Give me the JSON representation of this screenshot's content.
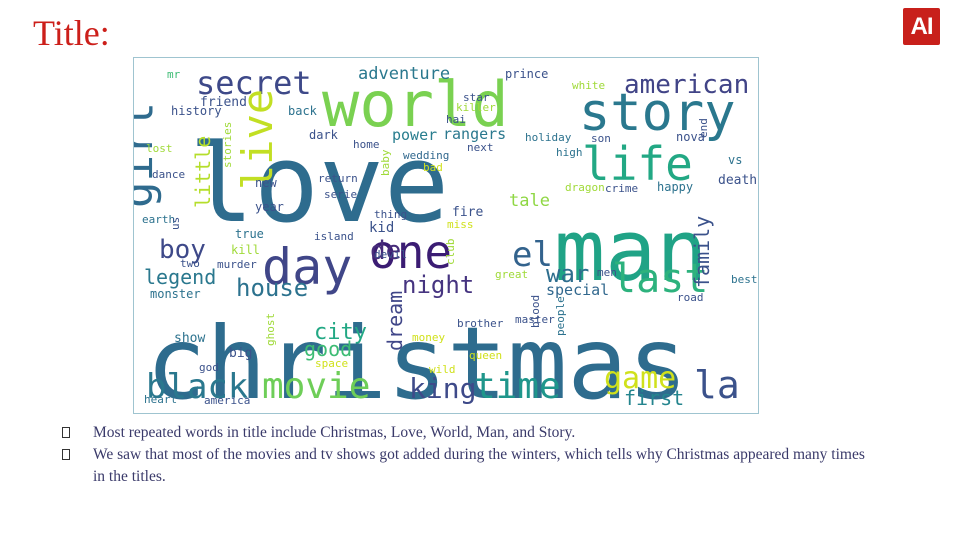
{
  "slide": {
    "title": "Title:",
    "logo_text": "AI",
    "colors": {
      "title": "#cc1f1a",
      "logo_bg": "#c8201b",
      "bullet_text": "#3a3a6a"
    }
  },
  "bullets": [
    "Most repeated words in title include Christmas, Love, World, Man, and Story.",
    "We saw that most of the movies and tv shows got added during the winters, which tells why Christmas appeared many times in the titles."
  ],
  "wordcloud": {
    "words": [
      {
        "text": "christmas",
        "color": "#2e6c8e"
      },
      {
        "text": "love",
        "color": "#2e6c8e"
      },
      {
        "text": "man",
        "color": "#20a386"
      },
      {
        "text": "world",
        "color": "#7ad151"
      },
      {
        "text": "story",
        "color": "#2a788e"
      },
      {
        "text": "life",
        "color": "#22a884"
      },
      {
        "text": "day",
        "color": "#404688"
      },
      {
        "text": "one",
        "color": "#3b1c73"
      },
      {
        "text": "girl",
        "color": "#2f6b8e"
      },
      {
        "text": "secret",
        "color": "#3e4989"
      },
      {
        "text": "live",
        "color": "#c2df23"
      },
      {
        "text": "last",
        "color": "#2db27d"
      },
      {
        "text": "american",
        "color": "#414487"
      },
      {
        "text": "movie",
        "color": "#6ece58"
      },
      {
        "text": "time",
        "color": "#1f968b"
      },
      {
        "text": "black",
        "color": "#2a788e"
      },
      {
        "text": "la",
        "color": "#3b528b"
      },
      {
        "text": "game",
        "color": "#d0e11c"
      },
      {
        "text": "king",
        "color": "#3e4a89"
      },
      {
        "text": "el",
        "color": "#33638d"
      },
      {
        "text": "boy",
        "color": "#3e4989"
      },
      {
        "text": "de",
        "color": "#472c7a"
      },
      {
        "text": "night",
        "color": "#463480"
      },
      {
        "text": "house",
        "color": "#2c728e"
      },
      {
        "text": "war",
        "color": "#2e6e8e"
      },
      {
        "text": "legend",
        "color": "#2a788e"
      },
      {
        "text": "city",
        "color": "#22a884"
      },
      {
        "text": "good",
        "color": "#3dbc74"
      },
      {
        "text": "first",
        "color": "#25858e"
      },
      {
        "text": "little",
        "color": "#b5de2b"
      },
      {
        "text": "family",
        "color": "#3b528b"
      },
      {
        "text": "dream",
        "color": "#404688"
      },
      {
        "text": "adventure",
        "color": "#2a788e"
      },
      {
        "text": "tale",
        "color": "#8fd744"
      },
      {
        "text": "special",
        "color": "#31688e"
      },
      {
        "text": "power",
        "color": "#287d8e"
      },
      {
        "text": "rangers",
        "color": "#2a788e"
      },
      {
        "text": "friend",
        "color": "#3b528b"
      },
      {
        "text": "back",
        "color": "#2c728e"
      },
      {
        "text": "history",
        "color": "#3b528b"
      },
      {
        "text": "prince",
        "color": "#3b528b"
      },
      {
        "text": "white",
        "color": "#a0da39"
      },
      {
        "text": "mr",
        "color": "#3dbc74"
      },
      {
        "text": "dark",
        "color": "#3b528b"
      },
      {
        "text": "home",
        "color": "#3b528b"
      },
      {
        "text": "wedding",
        "color": "#31688e"
      },
      {
        "text": "next",
        "color": "#3b528b"
      },
      {
        "text": "holiday",
        "color": "#2c728e"
      },
      {
        "text": "son",
        "color": "#3b528b"
      },
      {
        "text": "nova",
        "color": "#3b528b"
      },
      {
        "text": "high",
        "color": "#2c728e"
      },
      {
        "text": "vs",
        "color": "#2c728e"
      },
      {
        "text": "death",
        "color": "#3b528b"
      },
      {
        "text": "happy",
        "color": "#2c728e"
      },
      {
        "text": "crime",
        "color": "#3b528b"
      },
      {
        "text": "dragon",
        "color": "#a0da39"
      },
      {
        "text": "return",
        "color": "#3b528b"
      },
      {
        "text": "serie",
        "color": "#3b528b"
      },
      {
        "text": "baby",
        "color": "#a0da39"
      },
      {
        "text": "new",
        "color": "#3b528b"
      },
      {
        "text": "year",
        "color": "#3b528b"
      },
      {
        "text": "stories",
        "color": "#a0da39"
      },
      {
        "text": "thing",
        "color": "#3b528b"
      },
      {
        "text": "kid",
        "color": "#3b528b"
      },
      {
        "text": "fire",
        "color": "#3b528b"
      },
      {
        "text": "miss",
        "color": "#d0e11c"
      },
      {
        "text": "island",
        "color": "#3b528b"
      },
      {
        "text": "true",
        "color": "#2c728e"
      },
      {
        "text": "kill",
        "color": "#a0da39"
      },
      {
        "text": "devil",
        "color": "#3b528b"
      },
      {
        "text": "two",
        "color": "#3b528b"
      },
      {
        "text": "murder",
        "color": "#3b528b"
      },
      {
        "text": "monster",
        "color": "#2c728e"
      },
      {
        "text": "great",
        "color": "#a0da39"
      },
      {
        "text": "men",
        "color": "#3b528b"
      },
      {
        "text": "best",
        "color": "#2c728e"
      },
      {
        "text": "road",
        "color": "#3b528b"
      },
      {
        "text": "brother",
        "color": "#3b528b"
      },
      {
        "text": "master",
        "color": "#3b528b"
      },
      {
        "text": "blood",
        "color": "#3b528b"
      },
      {
        "text": "people",
        "color": "#2c728e"
      },
      {
        "text": "show",
        "color": "#2c728e"
      },
      {
        "text": "big",
        "color": "#3b528b"
      },
      {
        "text": "ghost",
        "color": "#a0da39"
      },
      {
        "text": "space",
        "color": "#d0e11c"
      },
      {
        "text": "money",
        "color": "#d0e11c"
      },
      {
        "text": "queen",
        "color": "#d0e11c"
      },
      {
        "text": "wild",
        "color": "#d0e11c"
      },
      {
        "text": "god",
        "color": "#3b528b"
      },
      {
        "text": "heart",
        "color": "#2c728e"
      },
      {
        "text": "america",
        "color": "#3b528b"
      },
      {
        "text": "earth",
        "color": "#2c728e"
      },
      {
        "text": "dance",
        "color": "#3b528b"
      },
      {
        "text": "lost",
        "color": "#a0da39"
      },
      {
        "text": "us",
        "color": "#3b528b"
      },
      {
        "text": "star",
        "color": "#3b528b"
      },
      {
        "text": "hai",
        "color": "#3b528b"
      },
      {
        "text": "killer",
        "color": "#a0da39"
      },
      {
        "text": "bad",
        "color": "#d0e11c"
      },
      {
        "text": "end",
        "color": "#3b528b"
      },
      {
        "text": "club",
        "color": "#a0da39"
      }
    ]
  }
}
